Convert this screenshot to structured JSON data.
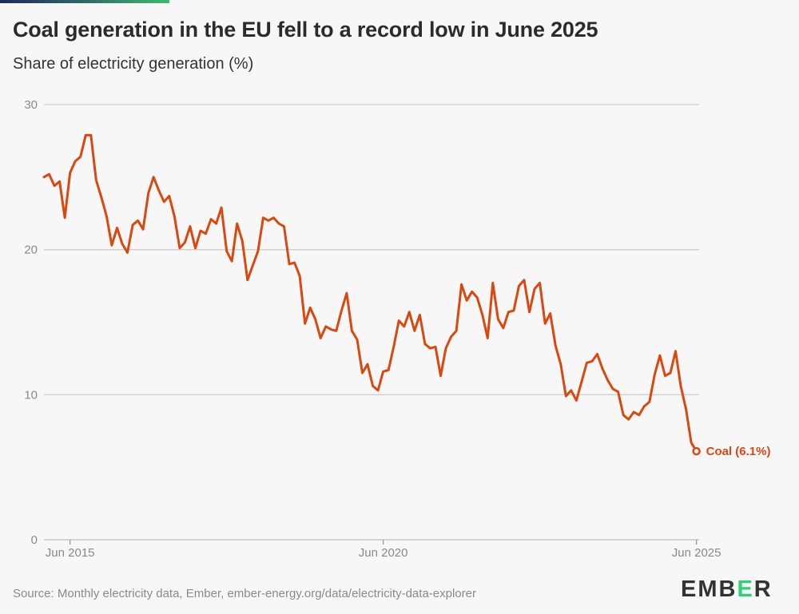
{
  "header": {
    "title": "Coal generation in the EU fell to a record low in June 2025",
    "subtitle": "Share of electricity generation (%)"
  },
  "footer": {
    "source": "Source: Monthly electricity data, Ember, ember-energy.org/data/electricity-data-explorer",
    "logo": "EMBER"
  },
  "chart_data": {
    "type": "line",
    "title": "Coal generation in the EU fell to a record low in June 2025",
    "ylabel": "Share of electricity generation (%)",
    "xlabel": "",
    "x_start": "Jan 2015",
    "x_end": "Jun 2025",
    "x_frequency": "monthly",
    "ylim": [
      0,
      30
    ],
    "yticks": [
      0,
      10,
      20,
      30
    ],
    "ytick_labels": [
      "0",
      "10",
      "20",
      "30"
    ],
    "xticks": [
      {
        "index": 5,
        "label": "Jun 2015"
      },
      {
        "index": 65,
        "label": "Jun 2020"
      },
      {
        "index": 125,
        "label": "Jun 2025"
      }
    ],
    "grid": true,
    "color": "#d9480f",
    "series": [
      {
        "name": "Coal",
        "end_label": "Coal (6.1%)",
        "values": [
          25.0,
          25.2,
          24.4,
          24.7,
          22.2,
          25.3,
          26.1,
          26.4,
          27.9,
          27.9,
          24.8,
          23.6,
          22.3,
          20.3,
          21.5,
          20.4,
          19.8,
          21.7,
          22.0,
          21.4,
          23.9,
          25.0,
          24.1,
          23.3,
          23.7,
          22.3,
          20.1,
          20.5,
          21.6,
          20.1,
          21.3,
          21.1,
          22.1,
          21.8,
          22.9,
          19.9,
          19.2,
          21.8,
          20.6,
          17.9,
          18.9,
          19.9,
          22.2,
          22.0,
          22.2,
          21.8,
          21.6,
          19.0,
          19.1,
          18.2,
          14.9,
          16.0,
          15.2,
          13.9,
          14.7,
          14.5,
          14.4,
          15.8,
          17.0,
          14.4,
          13.8,
          11.5,
          12.1,
          10.6,
          10.3,
          11.6,
          11.7,
          13.3,
          15.1,
          14.7,
          15.7,
          14.4,
          15.5,
          13.5,
          13.2,
          13.3,
          11.3,
          13.2,
          14.0,
          14.4,
          17.6,
          16.5,
          17.1,
          16.7,
          15.5,
          13.9,
          17.7,
          15.2,
          14.6,
          15.7,
          15.8,
          17.5,
          17.9,
          15.7,
          17.3,
          17.7,
          14.9,
          15.6,
          13.4,
          12.1,
          9.9,
          10.3,
          9.6,
          10.9,
          12.2,
          12.3,
          12.8,
          11.8,
          11.0,
          10.4,
          10.2,
          8.6,
          8.3,
          8.8,
          8.6,
          9.2,
          9.5,
          11.4,
          12.7,
          11.3,
          11.5,
          13.0,
          10.6,
          9.0,
          6.7,
          6.1
        ]
      }
    ]
  }
}
